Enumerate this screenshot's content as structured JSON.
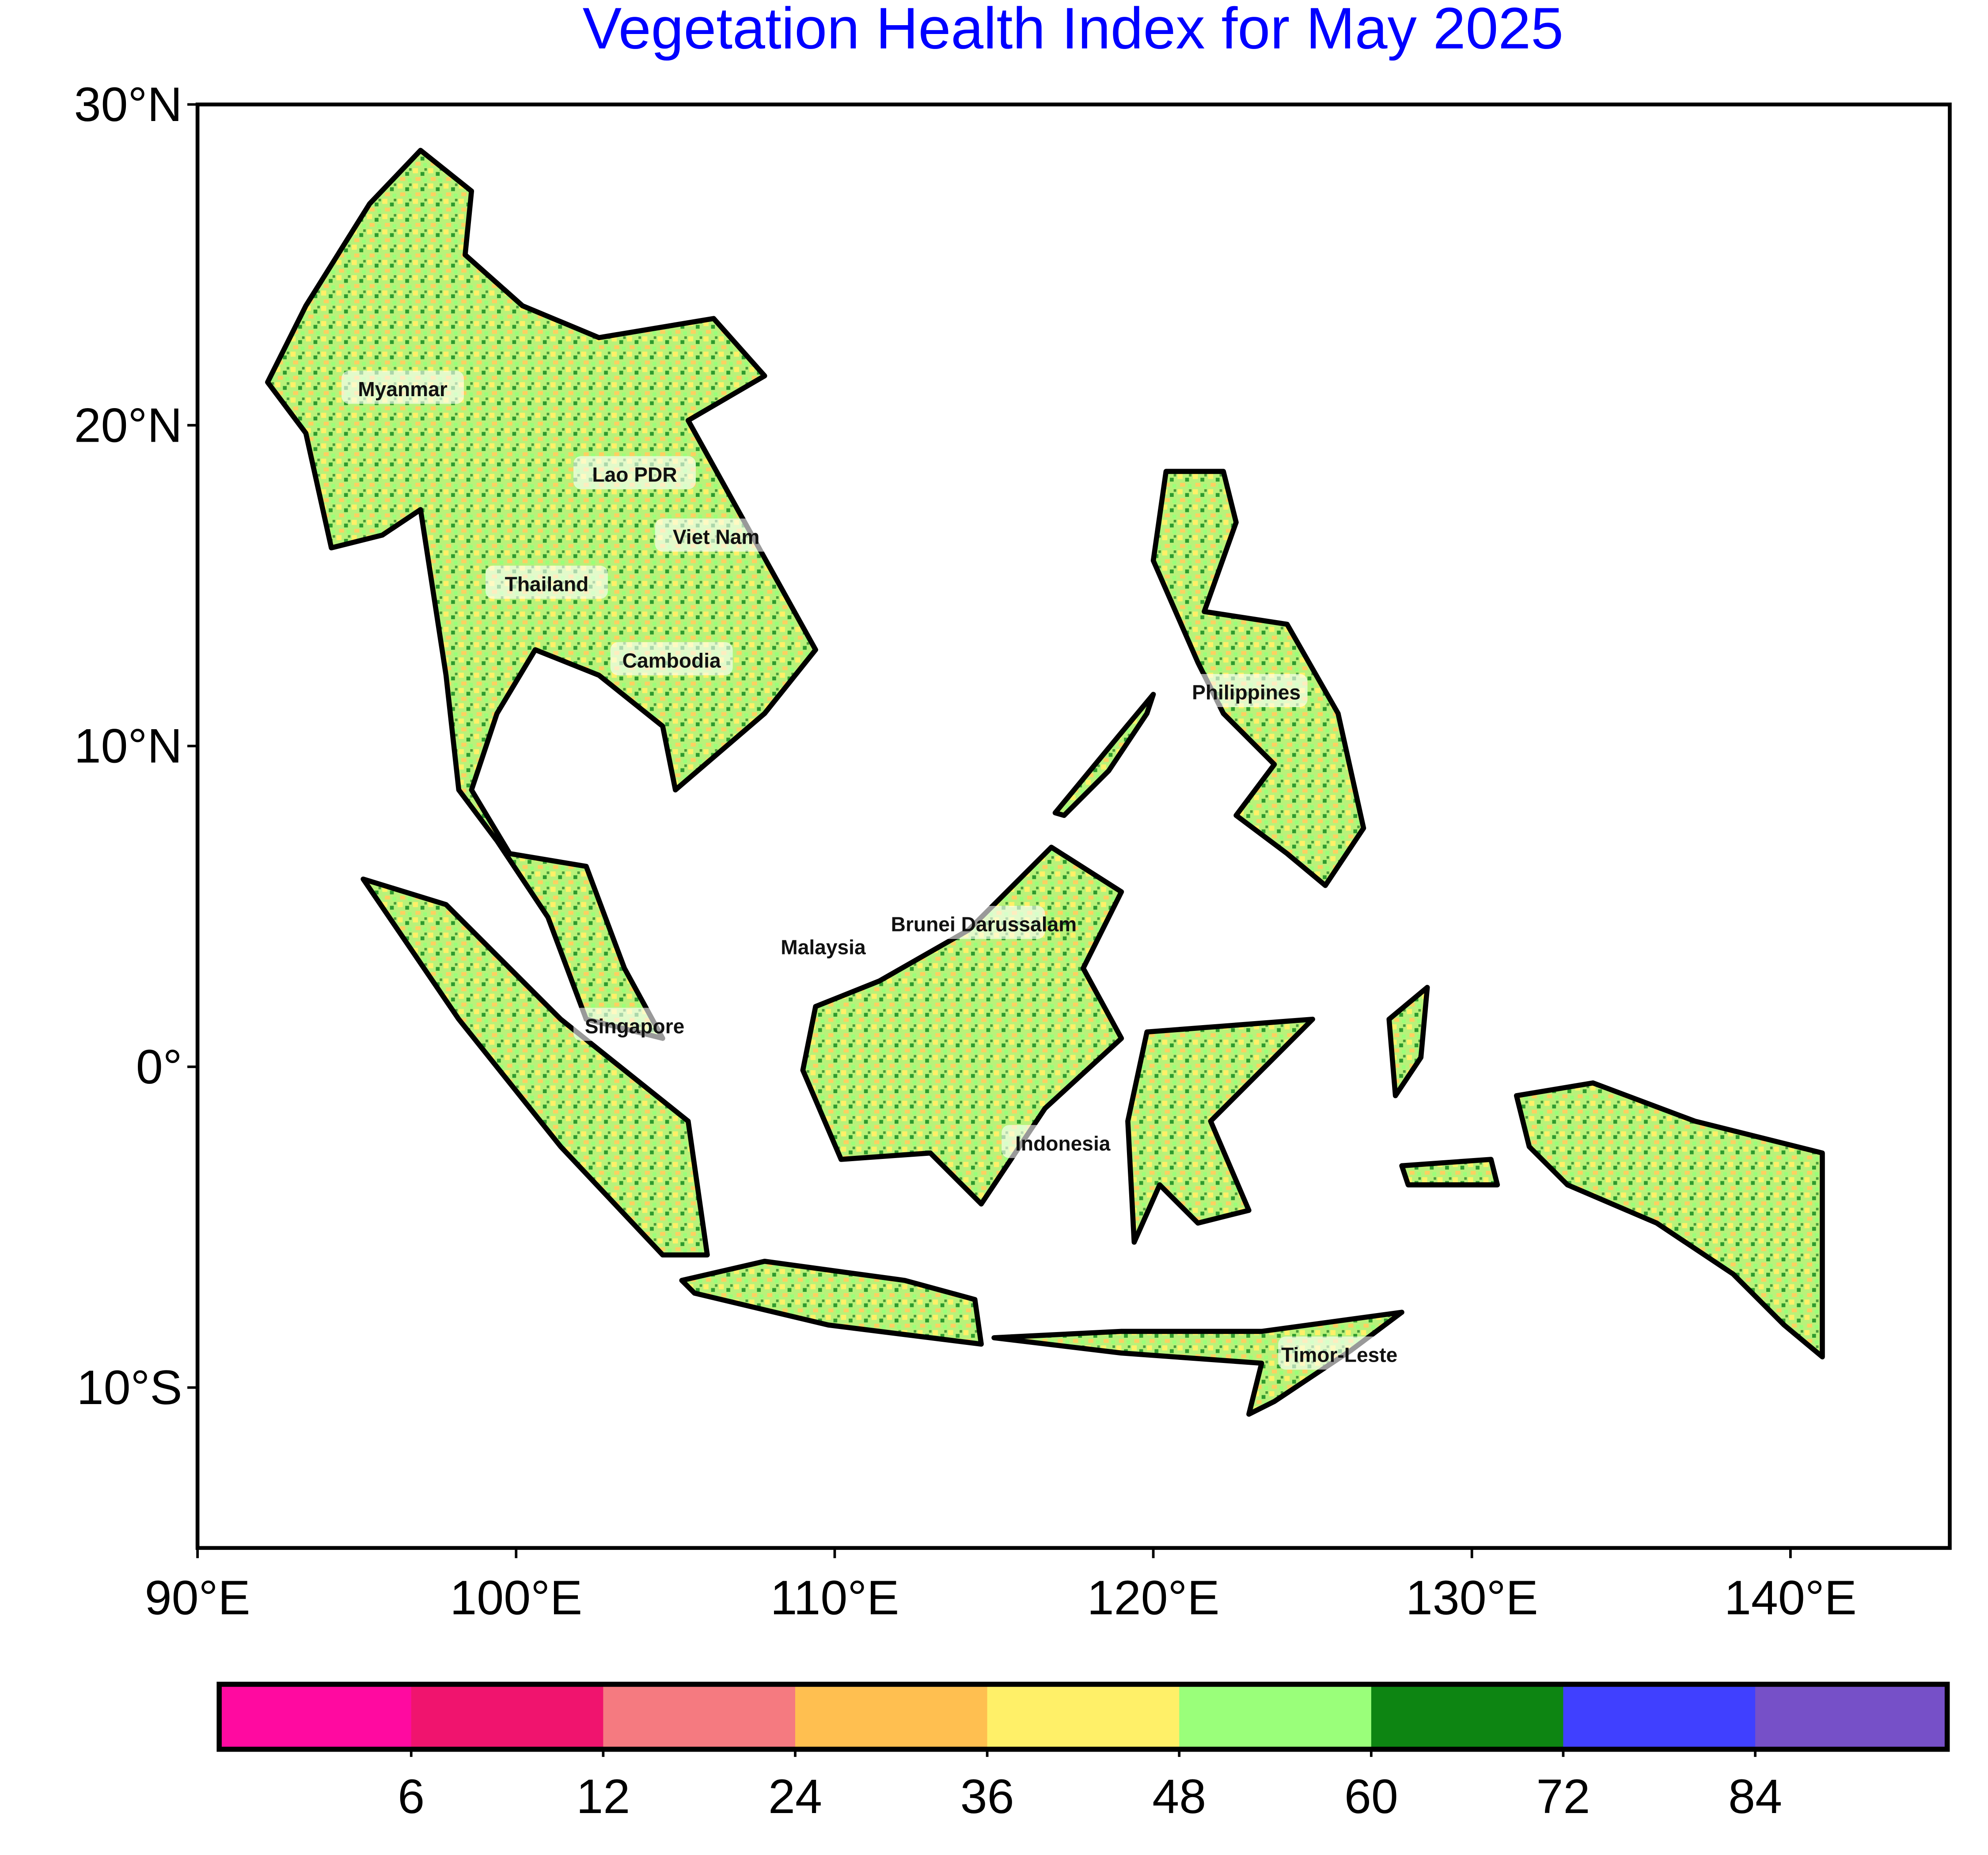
{
  "chart_data": {
    "type": "map",
    "title": "Vegetation Health Index for May 2025",
    "xlim": [
      90,
      145
    ],
    "ylim": [
      -15,
      30
    ],
    "xticks": [
      {
        "value": 90,
        "label": "90°E"
      },
      {
        "value": 100,
        "label": "100°E"
      },
      {
        "value": 110,
        "label": "110°E"
      },
      {
        "value": 120,
        "label": "120°E"
      },
      {
        "value": 130,
        "label": "130°E"
      },
      {
        "value": 140,
        "label": "140°E"
      }
    ],
    "yticks": [
      {
        "value": 30,
        "label": "30°N"
      },
      {
        "value": 20,
        "label": "20°N"
      },
      {
        "value": 10,
        "label": "10°N"
      },
      {
        "value": 0,
        "label": "0°"
      },
      {
        "value": -10,
        "label": "10°S"
      }
    ],
    "countries": [
      "Myanmar",
      "Lao PDR",
      "Viet Nam",
      "Thailand",
      "Cambodia",
      "Philippines",
      "Brunei Darussalam",
      "Malaysia",
      "Singapore",
      "Indonesia",
      "Timor-Leste"
    ],
    "colorbar": {
      "colors": [
        "#ff0aa0",
        "#f0146e",
        "#f57a80",
        "#ffbf50",
        "#fff068",
        "#9aff7a",
        "#0d8512",
        "#4040ff",
        "#7650c8"
      ],
      "ticks": [
        6,
        12,
        24,
        36,
        48,
        60,
        72,
        84
      ]
    }
  }
}
